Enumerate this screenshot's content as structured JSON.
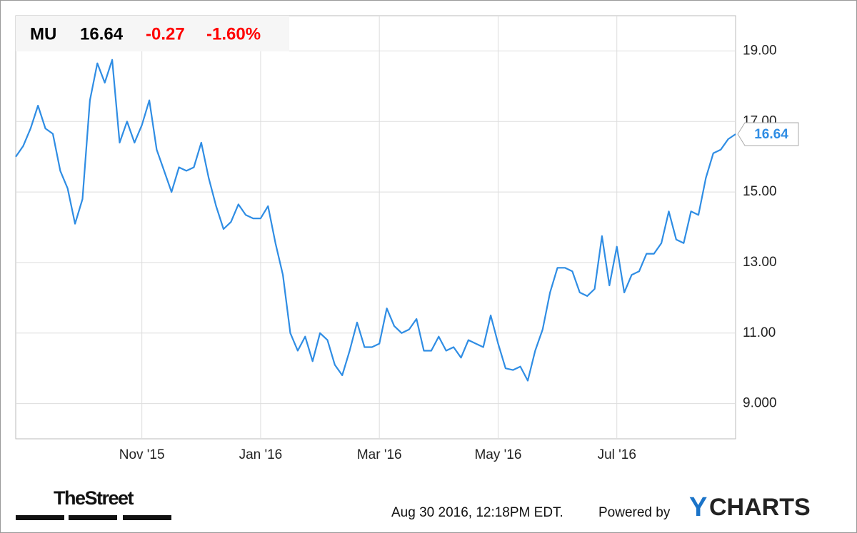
{
  "chart_data": {
    "type": "line",
    "ticker": "MU",
    "last_price": 16.64,
    "change": -0.27,
    "change_percent": "-1.60%",
    "series": [
      {
        "name": "MU",
        "color": "#2f8de4",
        "values": [
          16.0,
          16.3,
          16.8,
          17.45,
          16.8,
          16.65,
          15.6,
          15.1,
          14.1,
          14.8,
          17.6,
          18.65,
          18.1,
          18.75,
          16.4,
          17.0,
          16.4,
          16.9,
          17.6,
          16.2,
          15.6,
          15.0,
          15.7,
          15.6,
          15.7,
          16.4,
          15.4,
          14.6,
          13.95,
          14.15,
          14.65,
          14.35,
          14.25,
          14.25,
          14.6,
          13.55,
          12.65,
          11.0,
          10.5,
          10.9,
          10.2,
          11.0,
          10.8,
          10.1,
          9.8,
          10.5,
          11.3,
          10.6,
          10.6,
          10.7,
          11.7,
          11.2,
          11.0,
          11.1,
          11.4,
          10.5,
          10.5,
          10.9,
          10.5,
          10.6,
          10.3,
          10.8,
          10.7,
          10.6,
          11.5,
          10.7,
          10.0,
          9.95,
          10.05,
          9.65,
          10.5,
          11.1,
          12.15,
          12.85,
          12.85,
          12.75,
          12.15,
          12.05,
          12.25,
          13.75,
          12.35,
          13.45,
          12.15,
          12.65,
          12.75,
          13.25,
          13.25,
          13.55,
          14.45,
          13.65,
          13.55,
          14.45,
          14.35,
          15.4,
          16.1,
          16.2,
          16.5,
          16.64
        ]
      }
    ],
    "ylim": [
      8,
      20
    ],
    "yticks": [
      {
        "value": 9,
        "label": "9.000"
      },
      {
        "value": 11,
        "label": "11.00"
      },
      {
        "value": 13,
        "label": "13.00"
      },
      {
        "value": 15,
        "label": "15.00"
      },
      {
        "value": 17,
        "label": "17.00"
      },
      {
        "value": 19,
        "label": "19.00"
      }
    ],
    "xticks": [
      {
        "value": 17,
        "label": "Nov '15"
      },
      {
        "value": 33,
        "label": "Jan '16"
      },
      {
        "value": 49,
        "label": "Mar '16"
      },
      {
        "value": 65,
        "label": "May '16"
      },
      {
        "value": 81,
        "label": "Jul '16"
      }
    ],
    "grid": true,
    "down_color": "#ff0000"
  },
  "footer": {
    "source_logo": "TheStreet",
    "timestamp": "Aug 30 2016, 12:18PM EDT.",
    "powered_by": "Powered by",
    "brand": {
      "initial": "Y",
      "rest": "CHARTS"
    }
  }
}
